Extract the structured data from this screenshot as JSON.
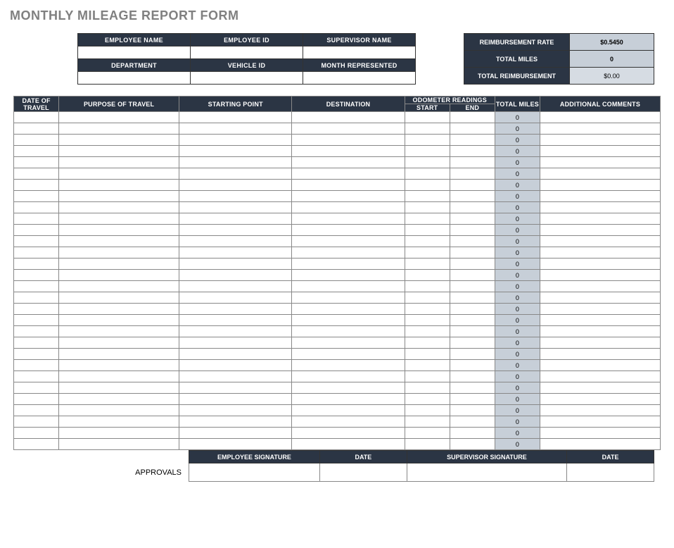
{
  "title": "MONTHLY MILEAGE REPORT FORM",
  "employee_info": {
    "row1": {
      "col1_label": "EMPLOYEE NAME",
      "col1_value": "",
      "col2_label": "EMPLOYEE ID",
      "col2_value": "",
      "col3_label": "SUPERVISOR NAME",
      "col3_value": ""
    },
    "row2": {
      "col1_label": "DEPARTMENT",
      "col1_value": "",
      "col2_label": "VEHICLE ID",
      "col2_value": "",
      "col3_label": "MONTH REPRESENTED",
      "col3_value": ""
    }
  },
  "summary": {
    "rate_label": "REIMBURSEMENT RATE",
    "rate_value": "$0.5450",
    "miles_label": "TOTAL MILES",
    "miles_value": "0",
    "reimb_label": "TOTAL REIMBURSEMENT",
    "reimb_value": "$0.00"
  },
  "columns": {
    "date": "DATE OF TRAVEL",
    "purpose": "PURPOSE OF TRAVEL",
    "starting": "STARTING POINT",
    "destination": "DESTINATION",
    "odometer": "ODOMETER READINGS",
    "od_start": "START",
    "od_end": "END",
    "total_miles": "TOTAL MILES",
    "comments": "ADDITIONAL COMMENTS"
  },
  "row_count": 30,
  "default_miles": "0",
  "approvals": {
    "label": "APPROVALS",
    "emp_sig": "EMPLOYEE SIGNATURE",
    "date1": "DATE",
    "sup_sig": "SUPERVISOR SIGNATURE",
    "date2": "DATE"
  },
  "colors": {
    "header_bg": "#2b3544",
    "header_text": "#ffffff",
    "shaded_cell": "#c7cfd8",
    "title_color": "#808080",
    "border": "#888888",
    "page_bg": "#ffffff"
  }
}
